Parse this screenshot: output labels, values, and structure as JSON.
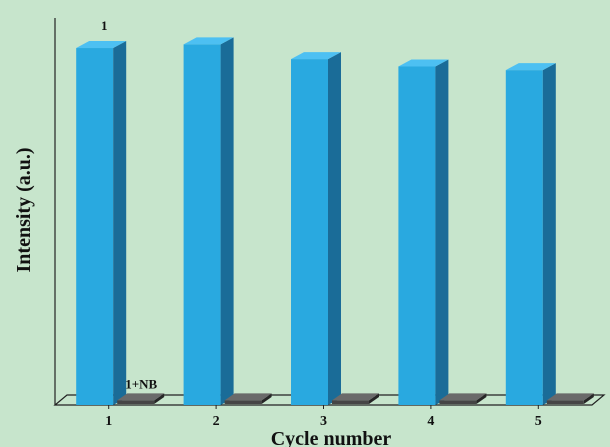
{
  "chart_data": {
    "type": "bar",
    "title": "",
    "xlabel": "Cycle number",
    "ylabel": "Intensity (a.u.)",
    "categories": [
      "1",
      "2",
      "3",
      "4",
      "5"
    ],
    "ylim": [
      0,
      100
    ],
    "grid": false,
    "style": "3d",
    "series": [
      {
        "name": "1",
        "values": [
          97,
          98,
          94,
          92,
          91
        ],
        "color": "#29a9e0"
      },
      {
        "name": "1+NB",
        "values": [
          1,
          1,
          1,
          1,
          1
        ],
        "color": "#4d4d4d"
      }
    ],
    "series_labels": [
      {
        "series": "1",
        "text": "1",
        "category": "1"
      },
      {
        "series": "1+NB",
        "text": "1+NB",
        "category": "1"
      }
    ]
  },
  "colors": {
    "background": "#c7e5cc",
    "bar_front": "#29a9e0",
    "bar_side": "#1a6c98",
    "bar_top": "#4dc0f2",
    "dark_front": "#454545",
    "dark_side": "#262626",
    "dark_top": "#6a6a6a"
  }
}
